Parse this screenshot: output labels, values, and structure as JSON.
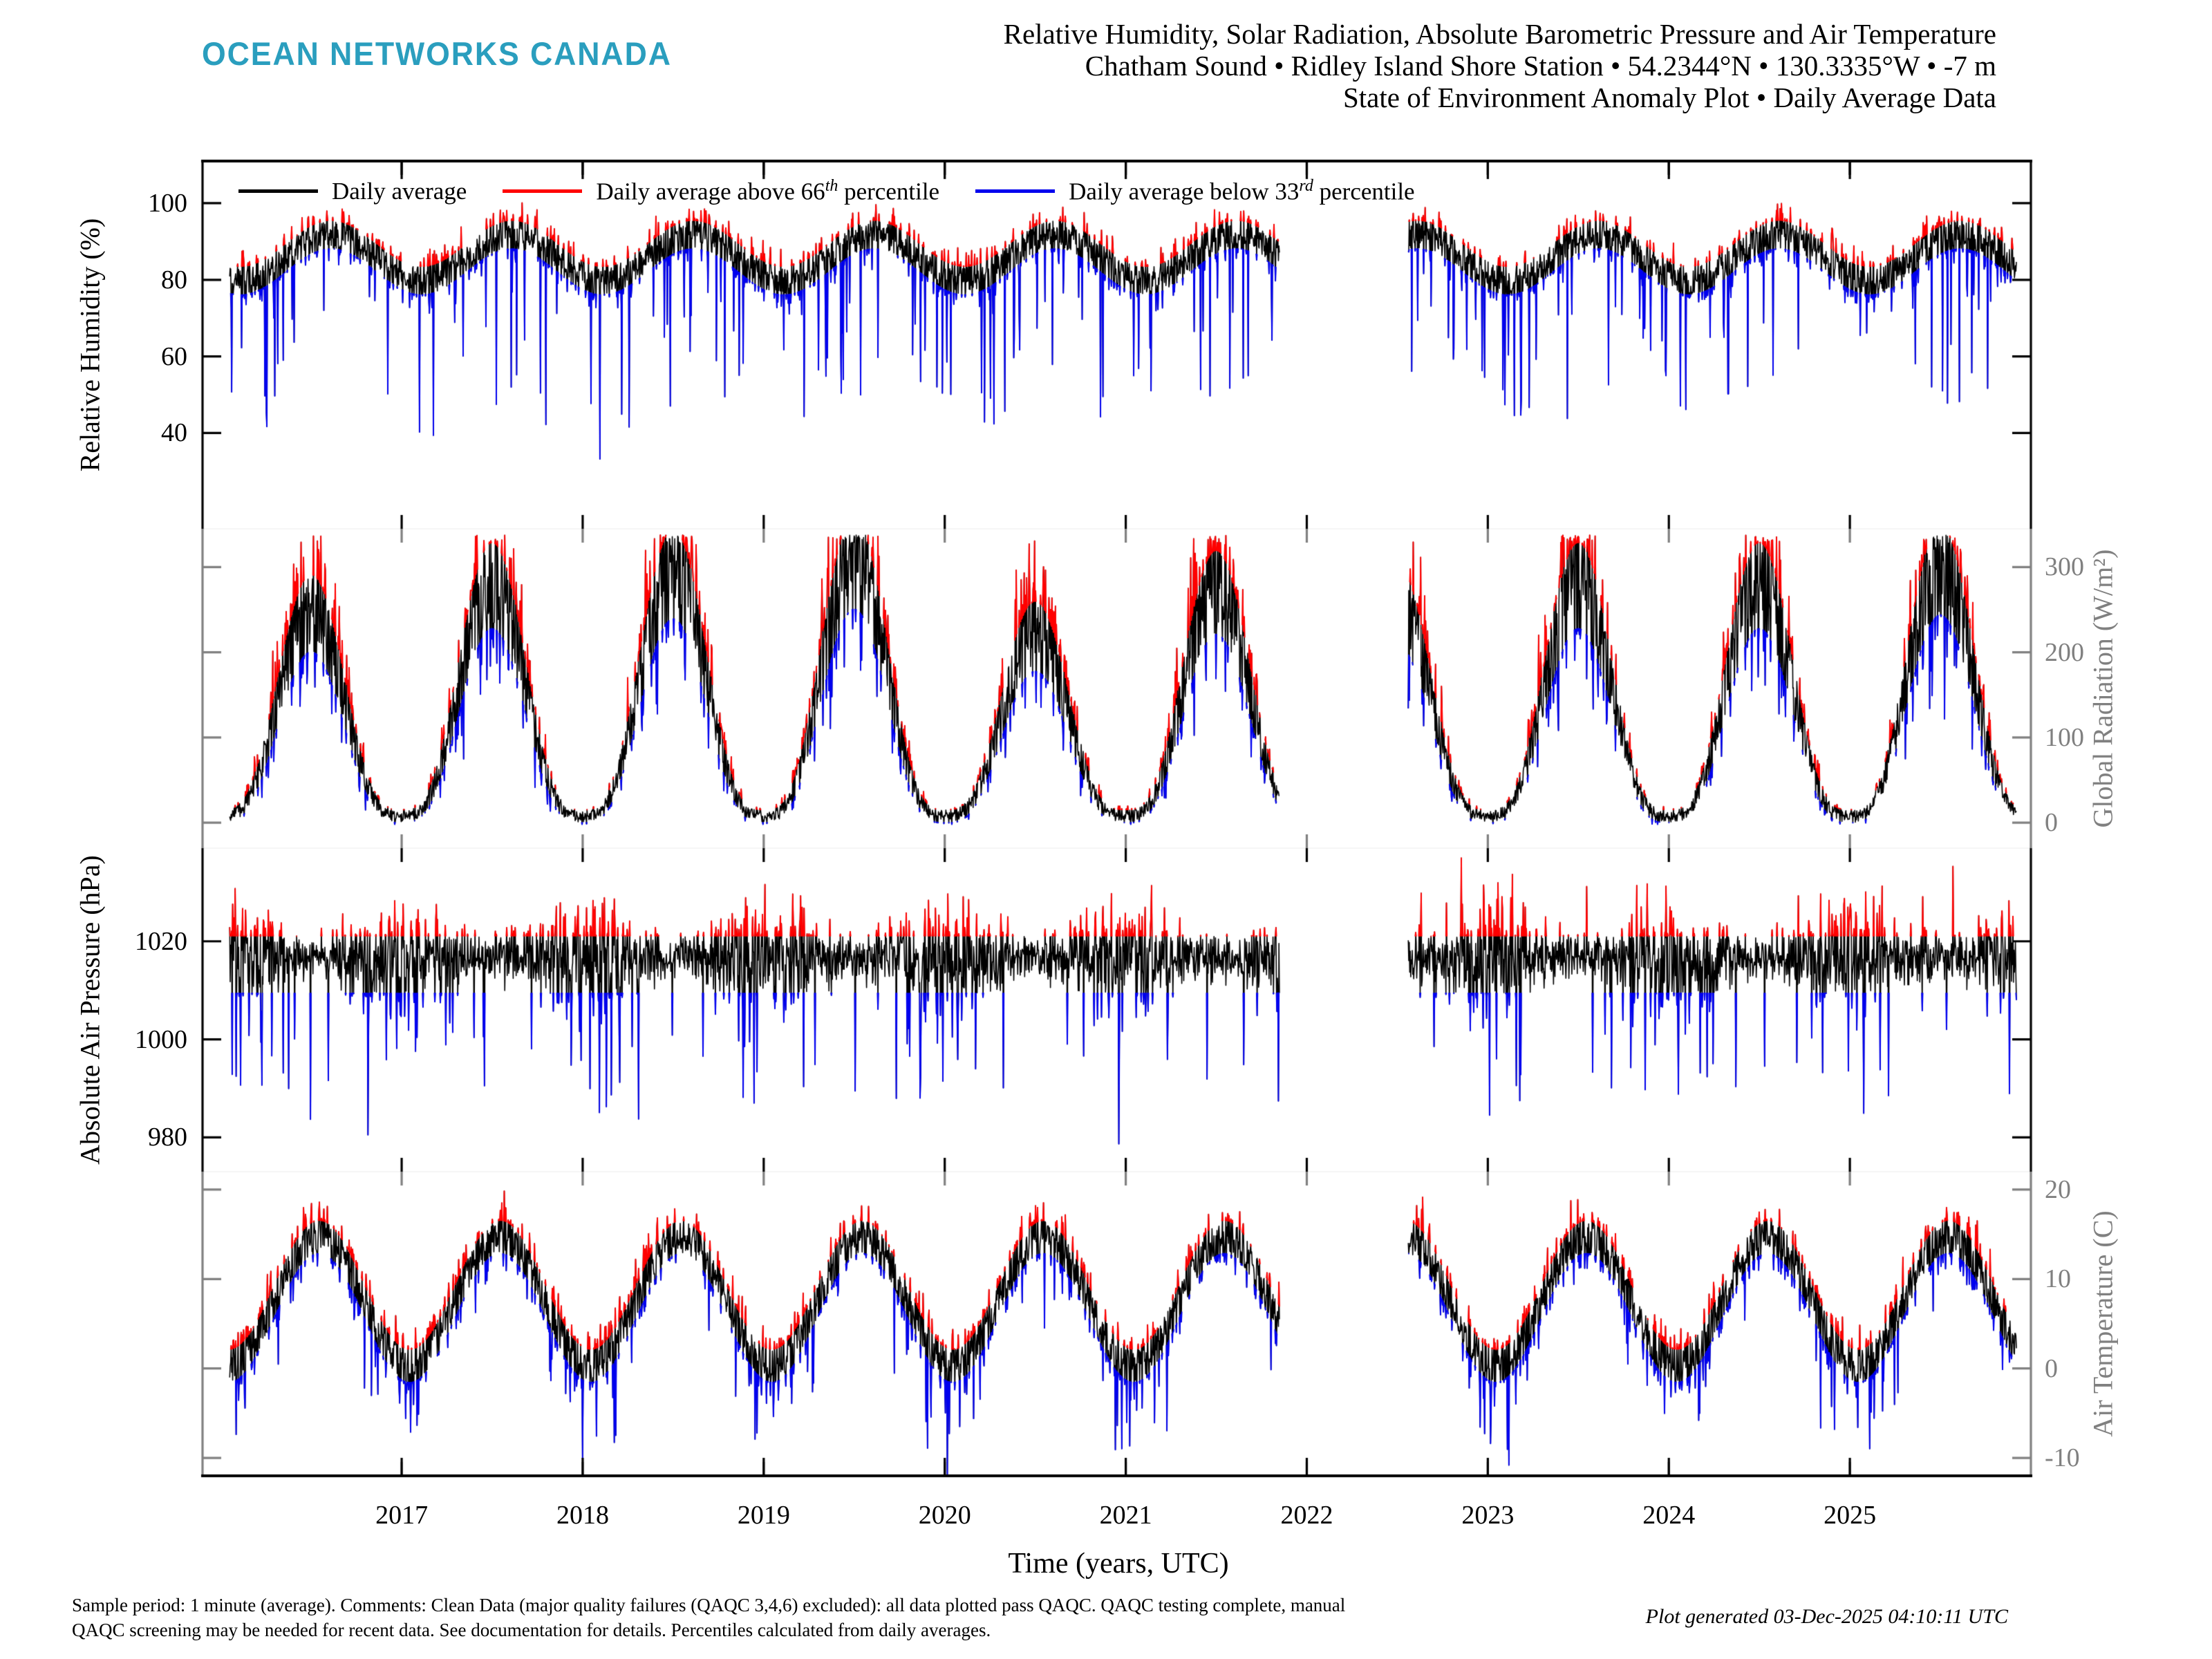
{
  "header": {
    "logo_text": "OCEAN NETWORKS CANADA",
    "logo_color": "#2A9EBE",
    "title_lines": [
      "Relative Humidity, Solar Radiation, Absolute Barometric Pressure and Air Temperature",
      "Chatham Sound • Ridley Island Shore Station • 54.2344°N • 130.3335°W • -7 m",
      "State of Environment Anomaly Plot • Daily Average Data"
    ]
  },
  "legend": {
    "items": [
      {
        "pre": "Daily average",
        "sup": "",
        "post": "",
        "color": "#000000"
      },
      {
        "pre": "Daily average above 66",
        "sup": "th",
        "post": " percentile",
        "color": "#ff0000"
      },
      {
        "pre": "Daily average below 33",
        "sup": "rd",
        "post": " percentile",
        "color": "#0000ee"
      }
    ]
  },
  "chart_data": {
    "type": "line",
    "x_axis": {
      "label": "Time (years, UTC)",
      "ticks": [
        2017,
        2018,
        2019,
        2020,
        2021,
        2022,
        2023,
        2024,
        2025
      ],
      "xlim": [
        2015.9,
        2026.0
      ],
      "data_start": 2016.05,
      "data_end": 2025.92,
      "gap": [
        2021.85,
        2022.56
      ]
    },
    "colors": {
      "daily": "#000000",
      "above": "#ff0000",
      "below": "#0000ee",
      "secondary_axis": "#808080",
      "primary_axis": "#000000"
    },
    "panels": [
      {
        "id": "relative_humidity",
        "ylabel": "Relative Humidity (%)",
        "axis_side": "left",
        "axis_color": "#000000",
        "yticks": [
          40,
          60,
          80,
          100
        ],
        "ylim": [
          15,
          111
        ],
        "profile": {
          "seed": 101,
          "mean": 86,
          "seasonal_amp": 6,
          "season_phase": 0.36,
          "noise_sd": 3.2,
          "dip_prob": 0.055,
          "dip_min": 8,
          "dip_extra": 34,
          "cap": 100.3,
          "band_up": 3.4,
          "band_down": 3.8
        }
      },
      {
        "id": "global_radiation",
        "ylabel": "Global Radiation (W/m²)",
        "axis_side": "right",
        "axis_color": "#808080",
        "yticks": [
          0,
          100,
          200,
          300
        ],
        "ylim": [
          -30,
          345
        ],
        "profile": {
          "seed": 202,
          "base": 8,
          "peak": 285,
          "shape_pow": 1.6,
          "noise_base": 3,
          "noise_frac": 0.2,
          "floor": -2,
          "cap": 338,
          "band_up_frac": 0.1,
          "band_up_abs": 6,
          "band_down_frac": 0.2,
          "band_down_abs": 6,
          "year_scale": {
            "2016": 0.88,
            "2017": 1.0,
            "2018": 1.05,
            "2019": 1.1,
            "2020": 0.78,
            "2021": 0.97,
            "2022": 0.92,
            "2023": 1.0,
            "2024": 1.0,
            "2025": 1.07
          }
        }
      },
      {
        "id": "air_pressure",
        "ylabel": "Absolute Air Pressure (hPa)",
        "axis_side": "left",
        "axis_color": "#000000",
        "yticks": [
          980,
          1000,
          1020
        ],
        "ylim": [
          973,
          1039
        ],
        "profile": {
          "seed": 303,
          "mean": 1016.8,
          "sd_summer": 2.2,
          "sd_winter_extra": 3.8,
          "dip_prob": 0.05,
          "dip_min": 6,
          "dip_extra": 26,
          "late_start": 2022.6,
          "spike_prob_late": 0.018,
          "spike_min": 6,
          "spike_extra": 12,
          "floor": 976.5,
          "cap": 1037,
          "thr_up": 1021,
          "thr_down": 1009.5
        }
      },
      {
        "id": "air_temperature",
        "ylabel": "Air Temperature (C)",
        "axis_side": "right",
        "axis_color": "#808080",
        "yticks": [
          -10,
          0,
          10,
          20
        ],
        "ylim": [
          -12,
          22
        ],
        "profile": {
          "seed": 404,
          "mean": 7.6,
          "seasonal_amp": 7.2,
          "season_phase": 0.295,
          "noise_sd": 1.8,
          "dip_prob": 0.05,
          "dip_min": 3,
          "dip_extra": 6.5,
          "floor": -11.8,
          "band_up": 1.7,
          "band_down": 1.9
        }
      }
    ]
  },
  "footer": {
    "line1": "Sample period: 1 minute (average). Comments: Clean Data (major quality failures (QAQC 3,4,6) excluded): all data plotted pass QAQC. QAQC testing complete, manual",
    "line2": "QAQC screening may be needed for recent data. See documentation for details. Percentiles calculated from daily averages.",
    "generated": "Plot generated 03-Dec-2025 04:10:11 UTC"
  }
}
